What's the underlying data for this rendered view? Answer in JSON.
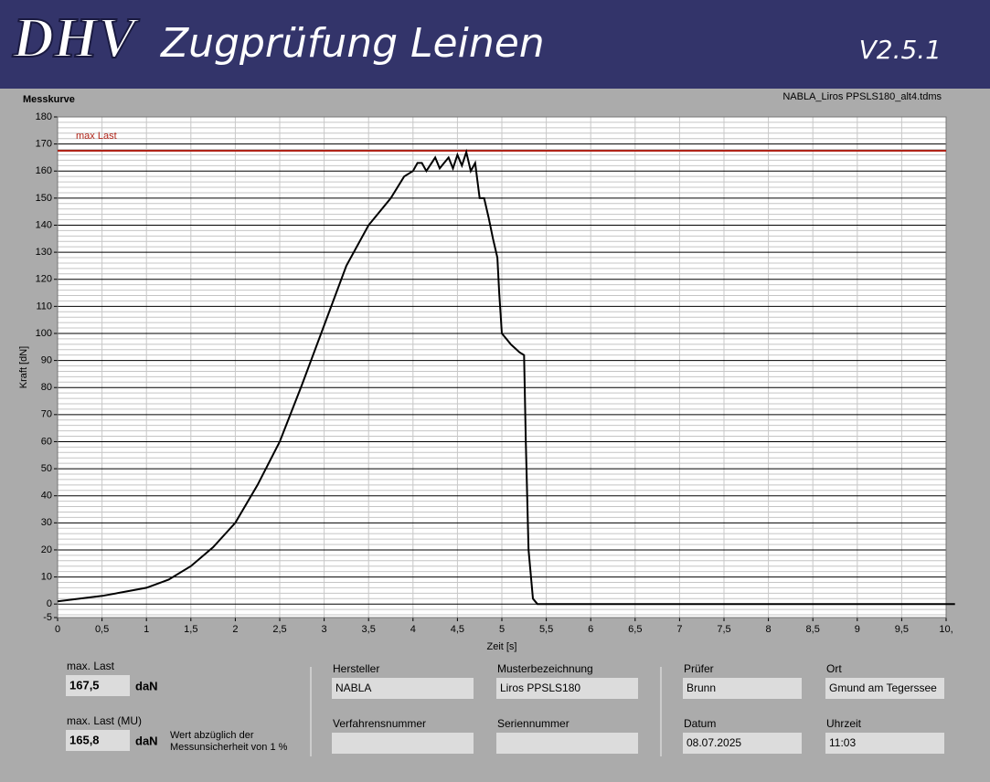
{
  "header": {
    "logo": "DHV",
    "title": "Zugprüfung Leinen",
    "version": "V2.5.1"
  },
  "chart_data": {
    "type": "line",
    "title": "Messkurve",
    "subtitle": "NABLA_Liros PPSLS180_alt4.tdms",
    "x_label": "Zeit [s]",
    "y_label": "Kraft [dN]",
    "x": [
      0,
      0.25,
      0.5,
      0.75,
      1,
      1.25,
      1.5,
      1.75,
      2,
      2.25,
      2.5,
      2.75,
      3,
      3.25,
      3.5,
      3.75,
      3.9,
      4,
      4.05,
      4.1,
      4.15,
      4.25,
      4.3,
      4.4,
      4.45,
      4.5,
      4.55,
      4.6,
      4.65,
      4.7,
      4.75,
      4.8,
      4.85,
      4.9,
      4.95,
      4.97,
      5,
      5.05,
      5.1,
      5.2,
      5.25,
      5.27,
      5.3,
      5.35,
      5.4,
      6,
      7,
      8,
      9,
      10.1
    ],
    "series": [
      {
        "color": "#000000",
        "values": [
          1,
          2,
          3,
          4.5,
          6,
          9,
          14,
          21,
          30,
          44,
          60,
          81,
          103,
          125,
          140,
          150,
          158,
          160,
          163,
          163,
          160,
          165,
          161,
          165,
          161,
          166,
          162,
          167,
          160,
          163,
          150,
          150,
          143,
          135,
          128,
          115,
          100,
          98,
          96,
          93,
          92,
          60,
          20,
          2,
          0,
          0,
          0,
          0,
          0,
          0
        ]
      }
    ],
    "annotations": [
      {
        "label": "max Last",
        "value": 167.5,
        "color": "#b02418"
      }
    ],
    "xlim": [
      0,
      10
    ],
    "ylim": [
      -5,
      180
    ],
    "xticks": [
      0,
      {
        "value": 0.5,
        "label": "0,5"
      },
      1,
      {
        "value": 1.5,
        "label": "1,5"
      },
      2,
      {
        "value": 2.5,
        "label": "2,5"
      },
      3,
      {
        "value": 3.5,
        "label": "3,5"
      },
      4,
      {
        "value": 4.5,
        "label": "4,5"
      },
      5,
      {
        "value": 5.5,
        "label": "5,5"
      },
      6,
      {
        "value": 6.5,
        "label": "6,5"
      },
      7,
      {
        "value": 7.5,
        "label": "7,5"
      },
      8,
      {
        "value": 8.5,
        "label": "8,5"
      },
      9,
      {
        "value": 9.5,
        "label": "9,5"
      },
      {
        "value": 10,
        "label": "10,"
      }
    ],
    "yticks": [
      -5,
      0,
      10,
      20,
      30,
      40,
      50,
      60,
      70,
      80,
      90,
      100,
      110,
      120,
      130,
      140,
      150,
      160,
      170,
      180
    ],
    "grid": true,
    "y_minor_step": 2
  },
  "form": {
    "max_last": {
      "label": "max. Last",
      "value": "167,5",
      "unit": "daN"
    },
    "max_last_mu": {
      "label": "max. Last (MU)",
      "value": "165,8",
      "unit": "daN",
      "note": [
        "Wert abzüglich der",
        "Messunsicherheit von 1 %"
      ]
    },
    "hersteller": {
      "label": "Hersteller",
      "value": "NABLA"
    },
    "musterbezeichnung": {
      "label": "Musterbezeichnung",
      "value": "Liros PPSLS180"
    },
    "verfahrensnummer": {
      "label": "Verfahrensnummer"
    },
    "seriennummer": {
      "label": "Seriennummer"
    },
    "pruefer": {
      "label": "Prüfer",
      "value": "Brunn"
    },
    "ort": {
      "label": "Ort",
      "value": "Gmund am Tegerssee"
    },
    "datum": {
      "label": "Datum",
      "value": "08.07.2025"
    },
    "uhrzeit": {
      "label": "Uhrzeit",
      "value": "11:03"
    }
  }
}
